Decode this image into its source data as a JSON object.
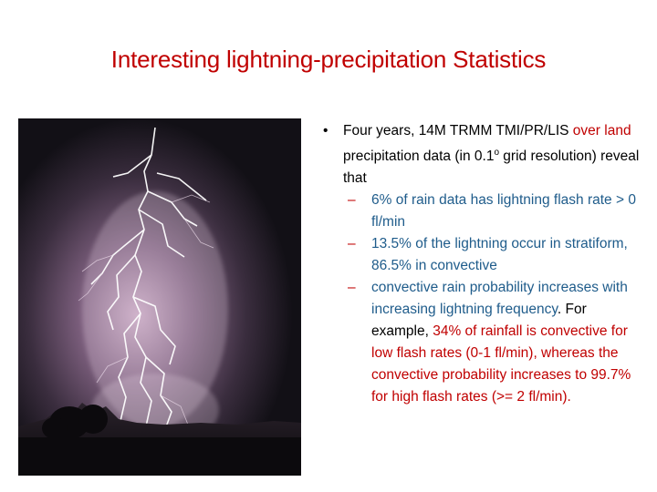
{
  "slide": {
    "title": "Interesting lightning-precipitation Statistics"
  },
  "image": {
    "icon": "lightning-photo",
    "alt": "Lightning"
  },
  "bullets": [
    {
      "marker": "•",
      "part1": "Four years, 14M TRMM TMI/PR/LIS ",
      "part2_red": "over land",
      "part3": " precipitation data (in 0.1",
      "sup": "o",
      "part4": " grid resolution) reveal that"
    }
  ],
  "sub_bullets": [
    {
      "marker": "–",
      "text": "6% of rain data has lightning flash rate > 0 fl/min"
    },
    {
      "marker": "–",
      "text": "13.5% of the lightning occur in stratiform, 86.5% in convective"
    },
    {
      "marker": "–",
      "p1": "convective rain probability increases with increasing lightning frequency",
      "p2": ". For example, ",
      "p3": "34% of rainfall is convective for low flash rates (0-1 fl/min), whereas the convective probability increases to 99.7% for high flash rates (>= 2 fl/min)."
    }
  ],
  "colors": {
    "title": "#c00000",
    "sub_text": "#1f5c8b",
    "dash": "#c00000",
    "text": "#000000"
  }
}
